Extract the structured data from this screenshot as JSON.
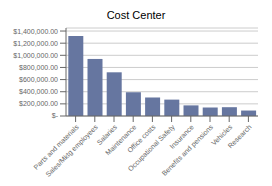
{
  "chart_data": {
    "type": "bar",
    "title": "Cost Center",
    "categories": [
      "Parts and materials",
      "Sales/Mktg employees",
      "Salaries",
      "Maintenance",
      "Office costs",
      "Occupational Safety",
      "Insurance",
      "Benefits and pensions",
      "Vehicles",
      "Research"
    ],
    "values": [
      1320000,
      940000,
      720000,
      390000,
      305000,
      270000,
      175000,
      140000,
      145000,
      90000
    ],
    "color": "#6676a0",
    "ylim": [
      0,
      1450000
    ],
    "yticks": [
      {
        "value": 0,
        "label": "$-"
      },
      {
        "value": 200000,
        "label": "$200,000.00"
      },
      {
        "value": 400000,
        "label": "$400,000.00"
      },
      {
        "value": 600000,
        "label": "$600,000.00"
      },
      {
        "value": 800000,
        "label": "$800,000.00"
      },
      {
        "value": 1000000,
        "label": "$1,000,000.00"
      },
      {
        "value": 1200000,
        "label": "$1,200,000.00"
      },
      {
        "value": 1400000,
        "label": "$1,400,000.00"
      }
    ],
    "grid": true
  }
}
